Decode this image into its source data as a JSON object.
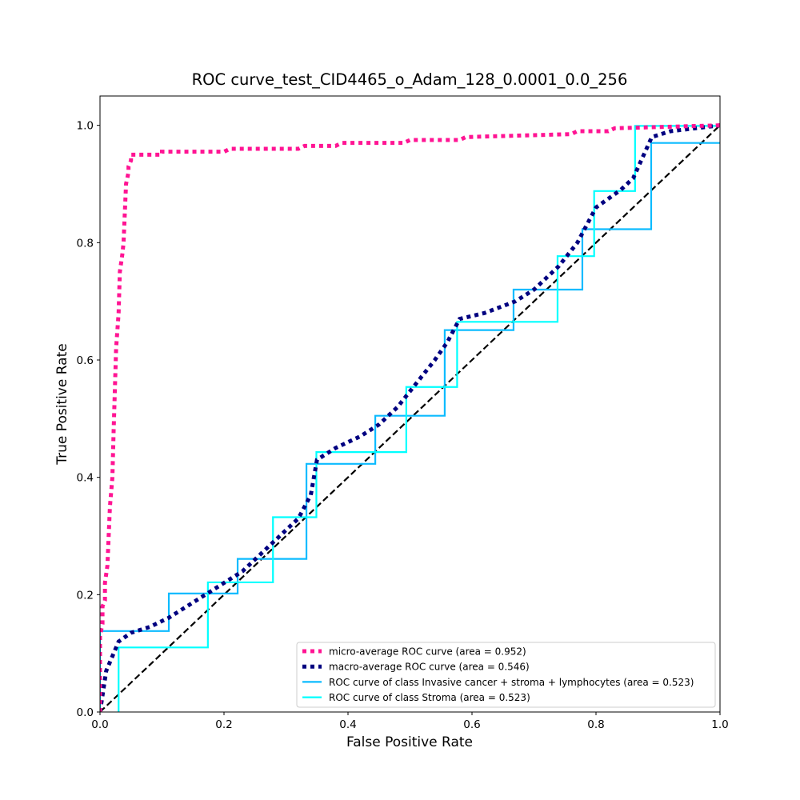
{
  "chart_data": {
    "type": "line",
    "title": "ROC curve_test_CID4465_o_Adam_128_0.0001_0.0_256",
    "xlabel": "False Positive Rate",
    "ylabel": "True Positive Rate",
    "xlim": [
      0.0,
      1.0
    ],
    "ylim": [
      0.0,
      1.05
    ],
    "x_ticks": [
      "0.0",
      "0.2",
      "0.4",
      "0.6",
      "0.8",
      "1.0"
    ],
    "y_ticks": [
      "0.0",
      "0.2",
      "0.4",
      "0.6",
      "0.8",
      "1.0"
    ],
    "grid": false,
    "legend_position": "lower-right",
    "series": [
      {
        "name": "micro-average ROC curve (area = 0.952)",
        "color": "#ff1493",
        "style": "dotted",
        "x": [
          0,
          0,
          0.004,
          0.004,
          0.008,
          0.008,
          0.012,
          0.014,
          0.016,
          0.02,
          0.022,
          0.024,
          0.026,
          0.03,
          0.032,
          0.036,
          0.038,
          0.04,
          0.042,
          0.046,
          0.046,
          0.05,
          0.05,
          0.1,
          0.1,
          0.2,
          0.21,
          0.32,
          0.33,
          0.38,
          0.39,
          0.49,
          0.5,
          0.58,
          0.59,
          0.76,
          0.77,
          0.82,
          0.83,
          1.0
        ],
        "y": [
          0,
          0.13,
          0.15,
          0.18,
          0.19,
          0.22,
          0.25,
          0.3,
          0.35,
          0.4,
          0.48,
          0.55,
          0.62,
          0.68,
          0.75,
          0.78,
          0.8,
          0.85,
          0.9,
          0.92,
          0.93,
          0.94,
          0.95,
          0.95,
          0.955,
          0.955,
          0.96,
          0.96,
          0.965,
          0.965,
          0.97,
          0.97,
          0.975,
          0.975,
          0.98,
          0.985,
          0.99,
          0.99,
          0.995,
          1.0
        ]
      },
      {
        "name": "macro-average ROC curve (area = 0.546)",
        "color": "#000080",
        "style": "dotted",
        "x": [
          0,
          0.01,
          0.03,
          0.05,
          0.08,
          0.11,
          0.14,
          0.17,
          0.2,
          0.23,
          0.26,
          0.29,
          0.32,
          0.34,
          0.35,
          0.38,
          0.42,
          0.45,
          0.48,
          0.51,
          0.54,
          0.56,
          0.58,
          0.62,
          0.67,
          0.7,
          0.74,
          0.77,
          0.8,
          0.84,
          0.86,
          0.89,
          0.92,
          1.0
        ],
        "y": [
          0,
          0.07,
          0.12,
          0.135,
          0.145,
          0.16,
          0.18,
          0.2,
          0.22,
          0.24,
          0.27,
          0.3,
          0.33,
          0.37,
          0.43,
          0.45,
          0.47,
          0.49,
          0.52,
          0.56,
          0.6,
          0.63,
          0.67,
          0.68,
          0.7,
          0.72,
          0.76,
          0.8,
          0.86,
          0.89,
          0.91,
          0.98,
          0.99,
          1.0
        ]
      },
      {
        "name": "ROC curve of class Invasive cancer + stroma + lymphocytes (area = 0.523)",
        "color": "#0cbbff",
        "style": "solid",
        "x": [
          0,
          0,
          0.111,
          0.111,
          0.222,
          0.222,
          0.333,
          0.333,
          0.444,
          0.444,
          0.556,
          0.556,
          0.667,
          0.667,
          0.778,
          0.778,
          0.889,
          0.889,
          1.0
        ],
        "y": [
          0,
          0.138,
          0.138,
          0.202,
          0.202,
          0.261,
          0.261,
          0.423,
          0.423,
          0.505,
          0.505,
          0.651,
          0.651,
          0.72,
          0.72,
          0.823,
          0.823,
          0.97,
          0.97
        ]
      },
      {
        "name": "ROC curve of class Stroma (area = 0.523)",
        "color": "#00ffff",
        "style": "solid",
        "x": [
          0.03,
          0.03,
          0.174,
          0.174,
          0.279,
          0.279,
          0.349,
          0.349,
          0.494,
          0.494,
          0.576,
          0.576,
          0.738,
          0.738,
          0.797,
          0.797,
          0.863,
          0.863,
          1.0
        ],
        "y": [
          0,
          0.11,
          0.11,
          0.221,
          0.221,
          0.332,
          0.332,
          0.443,
          0.443,
          0.554,
          0.554,
          0.665,
          0.665,
          0.777,
          0.777,
          0.888,
          0.888,
          0.999,
          0.999
        ]
      },
      {
        "name": "chance",
        "color": "#000000",
        "style": "dashed",
        "legend": false,
        "x": [
          0,
          1
        ],
        "y": [
          0,
          1
        ]
      }
    ]
  }
}
